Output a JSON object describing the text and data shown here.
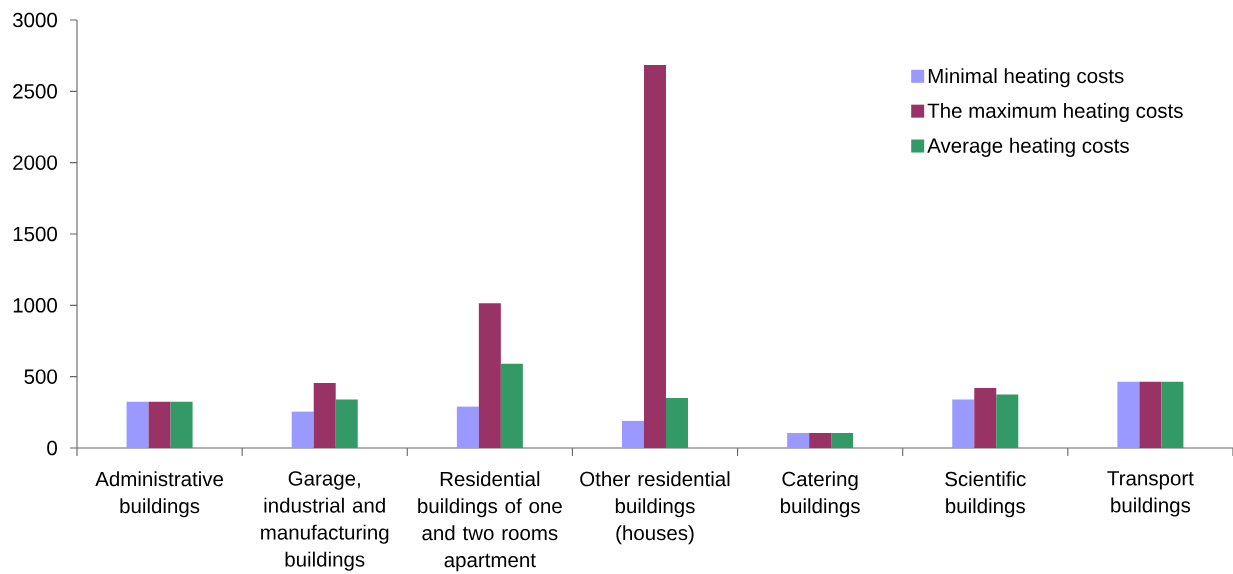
{
  "chart_data": {
    "type": "bar",
    "categories": [
      "Administrative buildings",
      "Garage, industrial and manufacturing buildings",
      "Residential buildings of one and two rooms apartment",
      "Other residential buildings (houses)",
      "Catering buildings",
      "Scientific buildings",
      "Transport buildings"
    ],
    "series": [
      {
        "name": "Minimal heating costs",
        "color": "#9999ff",
        "values": [
          325,
          255,
          290,
          190,
          105,
          340,
          465
        ]
      },
      {
        "name": "The maximum heating costs",
        "color": "#993366",
        "values": [
          325,
          455,
          1015,
          2685,
          105,
          420,
          465
        ]
      },
      {
        "name": "Average heating costs",
        "color": "#339966",
        "values": [
          325,
          340,
          590,
          350,
          105,
          375,
          465
        ]
      }
    ],
    "ylim": [
      0,
      3000
    ],
    "yticks": [
      0,
      500,
      1000,
      1500,
      2000,
      2500,
      3000
    ],
    "legend": "top right",
    "grid": false
  }
}
